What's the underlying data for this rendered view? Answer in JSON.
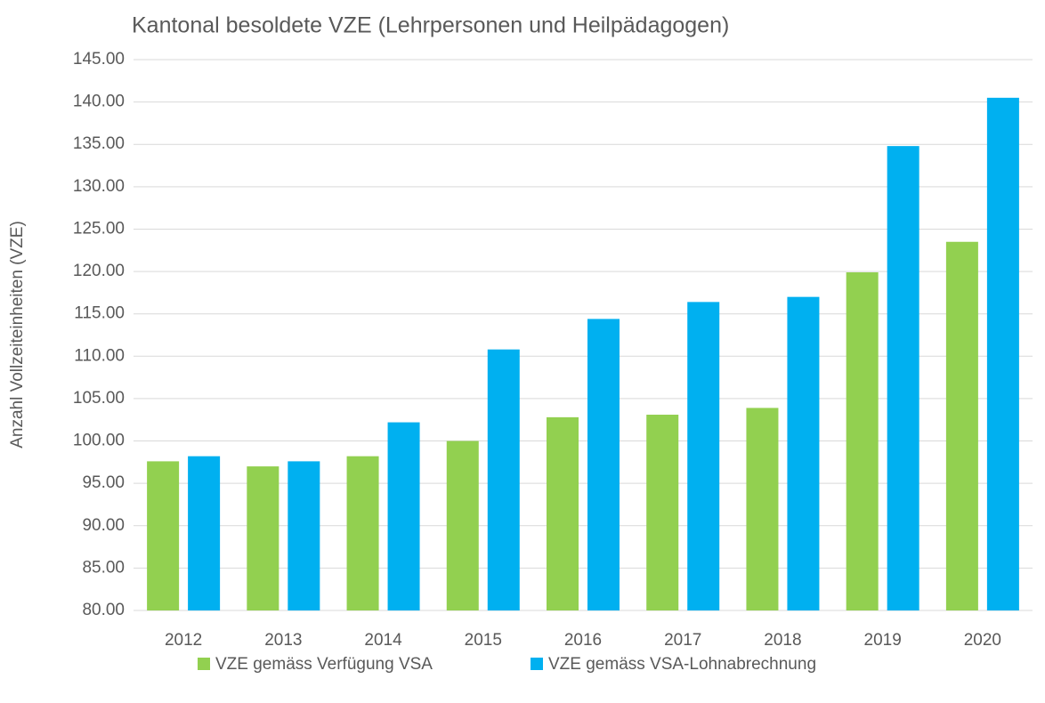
{
  "chart_data": {
    "type": "bar",
    "title": "Kantonal besoldete VZE (Lehrpersonen und Heilpädagogen)",
    "y_label": "Anzahl Vollzeiteinheiten (VZE)",
    "categories": [
      "2012",
      "2013",
      "2014",
      "2015",
      "2016",
      "2017",
      "2018",
      "2019",
      "2020"
    ],
    "series": [
      {
        "name": "VZE gemäss Verfügung VSA",
        "color": "#92d050",
        "values": [
          97.6,
          97.0,
          98.2,
          100.0,
          102.8,
          103.1,
          103.9,
          119.9,
          123.5
        ]
      },
      {
        "name": "VZE gemäss VSA-Lohnabrechnung",
        "color": "#00b0f0",
        "values": [
          98.2,
          97.6,
          102.2,
          110.8,
          114.4,
          116.4,
          117.0,
          134.8,
          140.5
        ]
      }
    ],
    "ylim": [
      80,
      145
    ],
    "yticks": [
      {
        "value": 80,
        "label": "80.00"
      },
      {
        "value": 85,
        "label": "85.00"
      },
      {
        "value": 90,
        "label": "90.00"
      },
      {
        "value": 95,
        "label": "95.00"
      },
      {
        "value": 100,
        "label": "100.00"
      },
      {
        "value": 105,
        "label": "105.00"
      },
      {
        "value": 110,
        "label": "110.00"
      },
      {
        "value": 115,
        "label": "115.00"
      },
      {
        "value": 120,
        "label": "120.00"
      },
      {
        "value": 125,
        "label": "125.00"
      },
      {
        "value": 130,
        "label": "130.00"
      },
      {
        "value": 135,
        "label": "135.00"
      },
      {
        "value": 140,
        "label": "140.00"
      },
      {
        "value": 145,
        "label": "145.00"
      }
    ],
    "grid": true,
    "legend": "bottom"
  }
}
